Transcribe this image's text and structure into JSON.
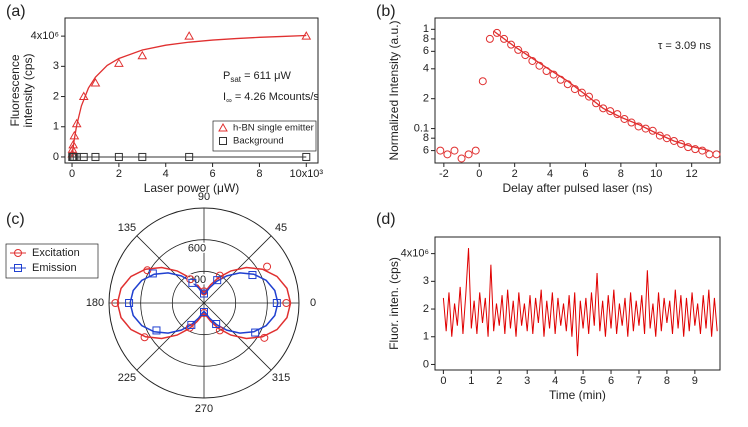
{
  "chart_data": [
    {
      "type": "scatter",
      "title": "(a)",
      "xlabel": "Laser power (μW)",
      "ylabel": [
        "Fluorescence",
        "intensity (cps)"
      ],
      "xlim": [
        -0.3,
        10.5
      ],
      "xticks": [
        0,
        2,
        4,
        6,
        8,
        {
          "value": 10,
          "label": "10x10³"
        }
      ],
      "ylim": [
        -0.2,
        4.6
      ],
      "yticks": [
        0,
        1,
        2,
        3,
        {
          "value": 4,
          "label": "4x10⁶"
        }
      ],
      "legend": "lower right",
      "series": [
        {
          "name": "h-BN single emitter",
          "color": "#e03030",
          "marker": "triangle",
          "x": [
            0.01,
            0.02,
            0.05,
            0.1,
            0.2,
            0.5,
            1,
            2,
            3,
            5,
            10
          ],
          "values": [
            0.1,
            0.25,
            0.4,
            0.7,
            1.1,
            2.0,
            2.45,
            3.1,
            3.35,
            4.0,
            4.0
          ]
        },
        {
          "name": "Background",
          "color": "#333333",
          "marker": "square",
          "x": [
            0.01,
            0.02,
            0.05,
            0.1,
            0.2,
            0.5,
            1,
            2,
            3,
            5,
            10
          ],
          "values": [
            0,
            0,
            0,
            0,
            0,
            0,
            0,
            0,
            0,
            0,
            0
          ]
        }
      ],
      "fit": {
        "color": "#e03030",
        "x": [
          0,
          0.05,
          0.1,
          0.2,
          0.4,
          0.7,
          1,
          1.5,
          2,
          3,
          4,
          5,
          6,
          7,
          8,
          9,
          10
        ],
        "values": [
          0,
          0.32,
          0.6,
          1.05,
          1.69,
          2.28,
          2.64,
          3.03,
          3.26,
          3.54,
          3.7,
          3.8,
          3.87,
          3.92,
          3.96,
          3.99,
          4.02
        ]
      },
      "annotations": [
        {
          "base": "P",
          "sub": "sat",
          "text": " = 611 μW"
        },
        {
          "base": "I",
          "sub": "∞",
          "text": " = 4.26 Mcounts/s"
        }
      ]
    },
    {
      "type": "scatter",
      "title": "(b)",
      "xlabel": "Delay after pulsed laser (ns)",
      "ylabel": [
        "Normalized Intensity (a.u.)"
      ],
      "log_y": true,
      "xlim": [
        -2.5,
        13.6
      ],
      "xticks": [
        -2,
        0,
        2,
        4,
        6,
        8,
        10,
        12
      ],
      "ylim": [
        0.045,
        1.3
      ],
      "yticks": [
        {
          "value": 0.06,
          "label": "6"
        },
        {
          "value": 0.08,
          "label": "8"
        },
        0.1,
        {
          "value": 0.2,
          "label": "2"
        },
        {
          "value": 0.4,
          "label": "4"
        },
        {
          "value": 0.6,
          "label": "6"
        },
        {
          "value": 0.8,
          "label": "8"
        },
        1
      ],
      "series": [
        {
          "color": "#e03030",
          "marker": "circle",
          "x": [
            -2.2,
            -1.8,
            -1.4,
            -1.0,
            -0.6,
            -0.2,
            0.2,
            0.6,
            1.0,
            1.4,
            1.8,
            2.2,
            2.6,
            3.0,
            3.4,
            3.8,
            4.2,
            4.6,
            5.0,
            5.4,
            5.8,
            6.2,
            6.6,
            7.0,
            7.4,
            7.8,
            8.2,
            8.6,
            9.0,
            9.4,
            9.8,
            10.2,
            10.6,
            11.0,
            11.4,
            11.8,
            12.2,
            12.6,
            13.0,
            13.4
          ],
          "values": [
            0.06,
            0.055,
            0.06,
            0.05,
            0.055,
            0.06,
            0.3,
            0.8,
            0.92,
            0.8,
            0.7,
            0.62,
            0.55,
            0.48,
            0.43,
            0.38,
            0.35,
            0.31,
            0.28,
            0.25,
            0.23,
            0.21,
            0.18,
            0.16,
            0.15,
            0.14,
            0.125,
            0.115,
            0.105,
            0.1,
            0.095,
            0.085,
            0.08,
            0.075,
            0.07,
            0.065,
            0.062,
            0.06,
            0.055,
            0.055
          ]
        }
      ],
      "fit": {
        "color": "#e03030",
        "x": [
          0.8,
          2,
          3,
          4,
          5,
          6,
          7,
          8,
          9,
          10,
          11,
          12,
          13
        ],
        "values": [
          0.965,
          0.67,
          0.51,
          0.39,
          0.3,
          0.22,
          0.16,
          0.13,
          0.11,
          0.09,
          0.075,
          0.066,
          0.06
        ]
      },
      "annotations": [
        "τ = 3.09 ns"
      ]
    },
    {
      "type": "polar",
      "title": "(c)",
      "rlim": [
        0,
        900
      ],
      "rticks": [
        300,
        600
      ],
      "angle_ticks": [
        0,
        45,
        90,
        135,
        180,
        225,
        270,
        315
      ],
      "series": [
        {
          "name": "Excitation",
          "color": "#e03030",
          "marker": "circle",
          "theta": [
            0,
            30,
            60,
            90,
            120,
            150,
            180,
            210,
            240,
            270,
            300,
            330
          ],
          "values": [
            780,
            690,
            300,
            110,
            260,
            620,
            840,
            650,
            270,
            95,
            300,
            660
          ]
        },
        {
          "name": "Emission",
          "color": "#2040d0",
          "marker": "square",
          "theta": [
            0,
            30,
            60,
            90,
            120,
            150,
            180,
            210,
            240,
            270,
            300,
            330
          ],
          "values": [
            690,
            530,
            250,
            90,
            220,
            560,
            710,
            520,
            240,
            85,
            230,
            560
          ]
        }
      ],
      "fits": [
        {
          "color": "#e03030",
          "theta": [
            0,
            10,
            20,
            30,
            40,
            50,
            60,
            70,
            80,
            90,
            100,
            110,
            120,
            130,
            140,
            150,
            160,
            170,
            180,
            190,
            200,
            210,
            220,
            230,
            240,
            250,
            260,
            270,
            280,
            290,
            300,
            310,
            320,
            330,
            340,
            350
          ],
          "values": [
            820,
            798,
            736,
            640,
            523,
            397,
            280,
            184,
            122,
            100,
            122,
            184,
            280,
            397,
            523,
            640,
            736,
            798,
            820,
            798,
            736,
            640,
            523,
            397,
            280,
            184,
            122,
            100,
            122,
            184,
            280,
            397,
            523,
            640,
            736,
            798
          ]
        },
        {
          "color": "#2040d0",
          "theta": [
            0,
            10,
            20,
            30,
            40,
            50,
            60,
            70,
            80,
            90,
            100,
            110,
            120,
            130,
            140,
            150,
            160,
            170,
            180,
            190,
            200,
            210,
            220,
            230,
            240,
            250,
            260,
            270,
            280,
            290,
            300,
            310,
            320,
            330,
            340,
            350
          ],
          "values": [
            700,
            681,
            627,
            545,
            444,
            336,
            235,
            153,
            99,
            80,
            99,
            153,
            235,
            336,
            444,
            545,
            627,
            681,
            700,
            681,
            627,
            545,
            444,
            336,
            235,
            153,
            99,
            80,
            99,
            153,
            235,
            336,
            444,
            545,
            627,
            681
          ]
        }
      ]
    },
    {
      "type": "line",
      "title": "(d)",
      "xlabel": "Time (min)",
      "ylabel": [
        "Fluor. inten. (cps)"
      ],
      "color": "#e00000",
      "xlim": [
        -0.3,
        9.9
      ],
      "xticks": [
        0,
        1,
        2,
        3,
        4,
        5,
        6,
        7,
        8,
        9
      ],
      "ylim": [
        -0.2,
        4.6
      ],
      "yticks": [
        0,
        1,
        2,
        3,
        {
          "value": 4,
          "label": "4x10⁶"
        }
      ],
      "x": [
        0,
        0.1,
        0.2,
        0.3,
        0.4,
        0.5,
        0.6,
        0.7,
        0.8,
        0.9,
        1,
        1.1,
        1.2,
        1.3,
        1.4,
        1.5,
        1.6,
        1.7,
        1.8,
        1.9,
        2,
        2.1,
        2.2,
        2.3,
        2.4,
        2.5,
        2.6,
        2.7,
        2.8,
        2.9,
        3,
        3.1,
        3.2,
        3.3,
        3.4,
        3.5,
        3.6,
        3.7,
        3.8,
        3.9,
        4,
        4.1,
        4.2,
        4.3,
        4.4,
        4.5,
        4.6,
        4.7,
        4.8,
        4.9,
        5,
        5.1,
        5.2,
        5.3,
        5.4,
        5.5,
        5.6,
        5.7,
        5.8,
        5.9,
        6,
        6.1,
        6.2,
        6.3,
        6.4,
        6.5,
        6.6,
        6.7,
        6.8,
        6.9,
        7,
        7.1,
        7.2,
        7.3,
        7.4,
        7.5,
        7.6,
        7.7,
        7.8,
        7.9,
        8,
        8.1,
        8.2,
        8.3,
        8.4,
        8.5,
        8.6,
        8.7,
        8.8,
        8.9,
        9,
        9.1,
        9.2,
        9.3,
        9.4,
        9.5,
        9.6,
        9.7,
        9.8
      ],
      "values": [
        2.4,
        1.2,
        2.6,
        1.0,
        2.2,
        1.4,
        2.8,
        1.1,
        2.5,
        4.2,
        1.3,
        2.3,
        1.1,
        2.6,
        1.5,
        2.4,
        1.0,
        3.6,
        1.2,
        2.2,
        1.4,
        2.5,
        1.1,
        2.7,
        1.3,
        2.3,
        1.0,
        2.6,
        1.4,
        2.2,
        1.2,
        2.5,
        1.1,
        2.4,
        1.5,
        2.7,
        1.0,
        2.3,
        1.3,
        2.6,
        1.1,
        2.4,
        1.4,
        2.2,
        1.2,
        2.5,
        1.0,
        2.6,
        0.3,
        2.3,
        1.3,
        2.4,
        1.1,
        2.6,
        1.4,
        3.3,
        1.2,
        2.3,
        1.0,
        2.5,
        1.3,
        2.7,
        1.1,
        2.2,
        1.4,
        2.4,
        1.0,
        2.6,
        1.2,
        2.3,
        1.4,
        2.5,
        1.1,
        3.4,
        1.3,
        2.2,
        1.0,
        2.6,
        1.2,
        2.4,
        1.5,
        2.3,
        1.1,
        2.7,
        1.3,
        2.5,
        1.0,
        2.4,
        1.2,
        2.6,
        1.4,
        2.2,
        1.1,
        2.5,
        1.3,
        2.7,
        1.0,
        2.4,
        1.2
      ]
    }
  ]
}
